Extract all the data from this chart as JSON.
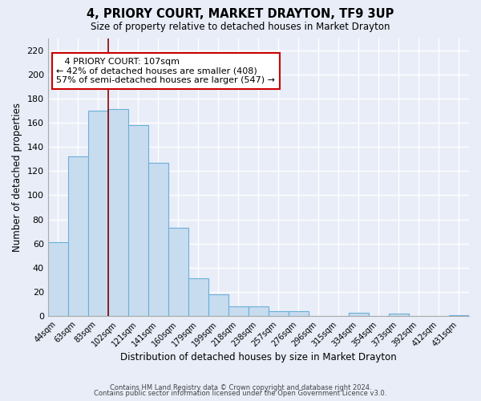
{
  "title": "4, PRIORY COURT, MARKET DRAYTON, TF9 3UP",
  "subtitle": "Size of property relative to detached houses in Market Drayton",
  "xlabel": "Distribution of detached houses by size in Market Drayton",
  "ylabel": "Number of detached properties",
  "bar_labels": [
    "44sqm",
    "63sqm",
    "83sqm",
    "102sqm",
    "121sqm",
    "141sqm",
    "160sqm",
    "179sqm",
    "199sqm",
    "218sqm",
    "238sqm",
    "257sqm",
    "276sqm",
    "296sqm",
    "315sqm",
    "334sqm",
    "354sqm",
    "373sqm",
    "392sqm",
    "412sqm",
    "431sqm"
  ],
  "bar_values": [
    61,
    132,
    170,
    171,
    158,
    127,
    73,
    31,
    18,
    8,
    8,
    4,
    4,
    0,
    0,
    3,
    0,
    2,
    0,
    0,
    1
  ],
  "bar_color": "#c8dcf0",
  "bar_edge_color": "#6aafd6",
  "ylim": [
    0,
    230
  ],
  "yticks": [
    0,
    20,
    40,
    60,
    80,
    100,
    120,
    140,
    160,
    180,
    200,
    220
  ],
  "vline_color": "#8b0000",
  "annotation_title": "4 PRIORY COURT: 107sqm",
  "annotation_line1": "← 42% of detached houses are smaller (408)",
  "annotation_line2": "57% of semi-detached houses are larger (547) →",
  "annotation_box_color": "#ffffff",
  "annotation_box_edge": "#cc0000",
  "footer1": "Contains HM Land Registry data © Crown copyright and database right 2024.",
  "footer2": "Contains public sector information licensed under the Open Government Licence v3.0.",
  "background_color": "#e8edf8"
}
